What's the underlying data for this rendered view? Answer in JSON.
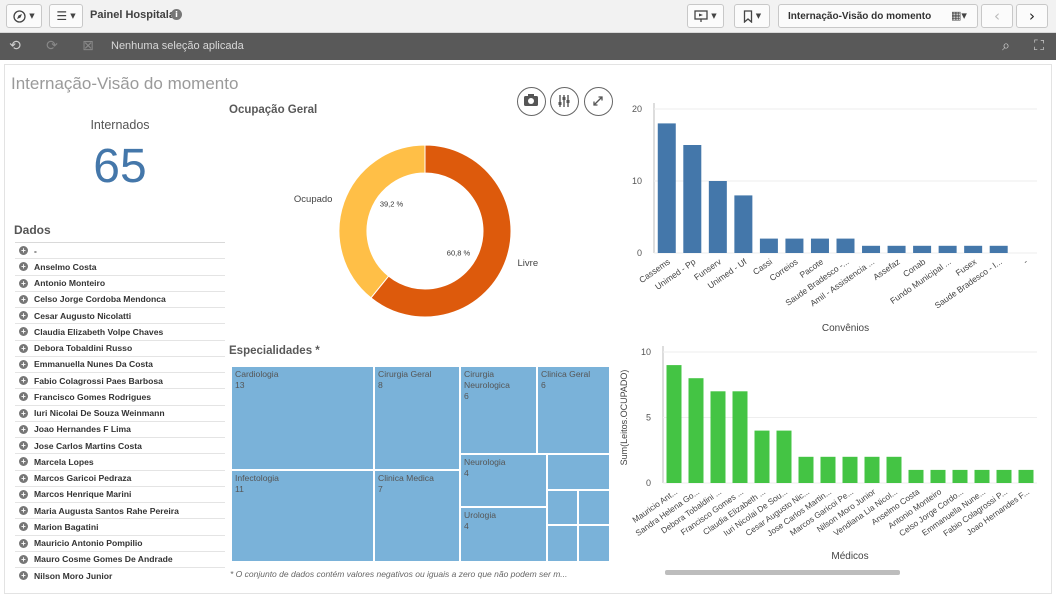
{
  "toolbar": {
    "app_title": "Painel Hospitalar",
    "sheet_title": "Internação-Visão do momento"
  },
  "selections": {
    "text": "Nenhuma seleção aplicada"
  },
  "sheet": {
    "heading": "Internação-Visão do momento"
  },
  "kpi": {
    "label": "Internados",
    "value": "65"
  },
  "list": {
    "title": "Dados",
    "items": [
      "-",
      "Anselmo Costa",
      "Antonio Monteiro",
      "Celso Jorge Cordoba Mendonca",
      "Cesar Augusto Nicolatti",
      "Claudia Elizabeth Volpe Chaves",
      "Debora Tobaldini Russo",
      "Emmanuella Nunes Da Costa",
      "Fabio Colagrossi Paes Barbosa",
      "Francisco Gomes Rodrigues",
      "Iuri Nicolai De Souza Weinmann",
      "Joao Hernandes F Lima",
      "Jose Carlos Martins Costa",
      "Marcela Lopes",
      "Marcos Garicoi Pedraza",
      "Marcos Henrique Marini",
      "Maria Augusta Santos Rahe Pereira",
      "Marion Bagatini",
      "Mauricio Antonio Pompilio",
      "Mauro Cosme Gomes De Andrade",
      "Nilson Moro Junior"
    ]
  },
  "sections": {
    "ocupacao": "Ocupação Geral",
    "especialidades": "Especialidades *",
    "footnote": "* O conjunto de dados contém valores negativos ou iguais a zero que não podem ser m..."
  },
  "colors": {
    "accent_blue": "#4477aa",
    "donut_ocupado": "#ffbf47",
    "donut_livre": "#dd5a0c",
    "treemap": "#7ab2d9",
    "medicos_bars": "#44c444"
  },
  "chart_data": [
    {
      "type": "pie",
      "title": "Ocupação Geral",
      "labels": [
        "Ocupado",
        "Livre"
      ],
      "values": [
        39.2,
        60.8
      ],
      "value_labels": [
        "39,2 %",
        "60,8 %"
      ]
    },
    {
      "type": "bar",
      "xlabel": "Convênios",
      "ylabel": "",
      "ylim": [
        0,
        20
      ],
      "yticks": [
        "0",
        "10",
        "20"
      ],
      "categories": [
        "Cassems",
        "Unimed - Pp",
        "Funserv",
        "Unimed - Uf",
        "Cassi",
        "Correios",
        "Pacote",
        "Saude Bradesco -...",
        "Amil - Assistencia ...",
        "Assefaz",
        "Conab",
        "Fundo Municipal ...",
        "Fusex",
        "Saude Bradesco - I...",
        "-"
      ],
      "values": [
        18,
        15,
        10,
        8,
        2,
        2,
        2,
        2,
        1,
        1,
        1,
        1,
        1,
        1,
        0
      ]
    },
    {
      "type": "bar",
      "xlabel": "Médicos",
      "ylabel": "Sum(Leitos.OCUPADO)",
      "ylim": [
        0,
        10
      ],
      "yticks": [
        "0",
        "5",
        "10"
      ],
      "categories": [
        "Mauricio Ant...",
        "Sandra Helena Go...",
        "Debora Tobaldini ...",
        "Francisco Gomes ...",
        "Claudia Elizabeth ...",
        "Iuri Nicolai De Sou...",
        "Cesar Augusto Nic...",
        "Jose Carlos Martin...",
        "Marcos Garicoi Pe...",
        "Nilson Moro Junior",
        "Vendiana Lia Nicol...",
        "Anselmo Costa",
        "Antonio Monteiro",
        "Celso Jorge Cordo...",
        "Emmanuella Nune...",
        "Fabio Colagrossi P...",
        "Joao Hernandes F..."
      ],
      "values": [
        9,
        8,
        7,
        7,
        4,
        4,
        2,
        2,
        2,
        2,
        2,
        1,
        1,
        1,
        1,
        1,
        1
      ]
    },
    {
      "type": "treemap",
      "title": "Especialidades *",
      "labels": [
        "Cardiologia",
        "Infectologia",
        "Cirurgia Geral",
        "Clinica Medica",
        "Cirurgia Neurologica",
        "Clinica Geral",
        "Neurologia",
        "Urologia"
      ],
      "values": [
        13,
        11,
        8,
        7,
        6,
        6,
        4,
        4
      ]
    }
  ]
}
